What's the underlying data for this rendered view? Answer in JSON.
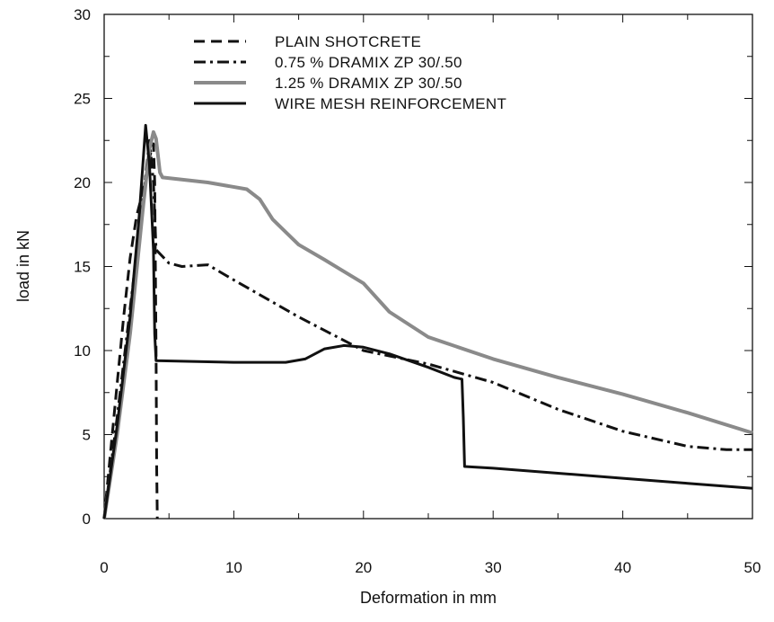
{
  "chart_data": {
    "type": "line",
    "title": "",
    "xlabel": "Deformation in mm",
    "ylabel": "load in kN",
    "xlim": [
      0,
      50
    ],
    "ylim": [
      0,
      30
    ],
    "xticks": [
      0,
      10,
      20,
      30,
      40,
      50
    ],
    "yticks": [
      0,
      5,
      10,
      15,
      20,
      25,
      30
    ],
    "grid": false,
    "legend_position": "top-center",
    "series": [
      {
        "name": "PLAIN SHOTCRETE",
        "style": "dashed",
        "color": "#111111",
        "points": [
          [
            0,
            0
          ],
          [
            0.5,
            4
          ],
          [
            1,
            8
          ],
          [
            1.5,
            12
          ],
          [
            2,
            15.5
          ],
          [
            2.5,
            18
          ],
          [
            3,
            19.5
          ],
          [
            3.5,
            21.5
          ],
          [
            3.8,
            22.3
          ],
          [
            3.9,
            20
          ],
          [
            4,
            10
          ],
          [
            4.05,
            3
          ],
          [
            4.1,
            0
          ]
        ]
      },
      {
        "name": "0.75 % DRAMIX ZP 30/.50",
        "style": "dash-dot",
        "color": "#111111",
        "points": [
          [
            0,
            0
          ],
          [
            1,
            6
          ],
          [
            2,
            12.5
          ],
          [
            3,
            19
          ],
          [
            3.5,
            22.5
          ],
          [
            3.8,
            20
          ],
          [
            4,
            16
          ],
          [
            5,
            15.2
          ],
          [
            6,
            15
          ],
          [
            8,
            15.1
          ],
          [
            10,
            14.2
          ],
          [
            15,
            12
          ],
          [
            20,
            10
          ],
          [
            25,
            9.2
          ],
          [
            30,
            8.1
          ],
          [
            35,
            6.5
          ],
          [
            40,
            5.2
          ],
          [
            45,
            4.3
          ],
          [
            48,
            4.1
          ],
          [
            50,
            4.1
          ]
        ]
      },
      {
        "name": "1.25 % DRAMIX ZP 30/.50",
        "style": "solid",
        "color": "#8a8a8a",
        "points": [
          [
            0,
            0
          ],
          [
            1,
            5
          ],
          [
            2,
            11
          ],
          [
            3,
            18.5
          ],
          [
            3.5,
            22
          ],
          [
            3.8,
            23
          ],
          [
            4,
            22.6
          ],
          [
            4.3,
            20.6
          ],
          [
            4.5,
            20.3
          ],
          [
            8,
            20
          ],
          [
            11,
            19.6
          ],
          [
            12,
            19
          ],
          [
            13,
            17.8
          ],
          [
            15,
            16.3
          ],
          [
            17,
            15.4
          ],
          [
            20,
            14
          ],
          [
            22,
            12.3
          ],
          [
            25,
            10.8
          ],
          [
            30,
            9.5
          ],
          [
            35,
            8.4
          ],
          [
            40,
            7.4
          ],
          [
            45,
            6.3
          ],
          [
            50,
            5.1
          ]
        ]
      },
      {
        "name": "WIRE MESH REINFORCEMENT",
        "style": "solid",
        "color": "#111111",
        "points": [
          [
            0,
            0
          ],
          [
            1,
            5.5
          ],
          [
            2,
            12
          ],
          [
            2.7,
            18
          ],
          [
            3.2,
            23.4
          ],
          [
            3.5,
            21
          ],
          [
            3.8,
            16
          ],
          [
            3.9,
            11
          ],
          [
            4,
            9.4
          ],
          [
            10,
            9.3
          ],
          [
            14,
            9.3
          ],
          [
            15.5,
            9.5
          ],
          [
            17,
            10.1
          ],
          [
            18.5,
            10.3
          ],
          [
            20,
            10.2
          ],
          [
            22,
            9.8
          ],
          [
            25,
            9
          ],
          [
            27,
            8.4
          ],
          [
            27.6,
            8.3
          ],
          [
            27.7,
            6
          ],
          [
            27.8,
            3.1
          ],
          [
            30,
            3
          ],
          [
            35,
            2.7
          ],
          [
            40,
            2.4
          ],
          [
            45,
            2.1
          ],
          [
            50,
            1.8
          ]
        ]
      }
    ]
  }
}
